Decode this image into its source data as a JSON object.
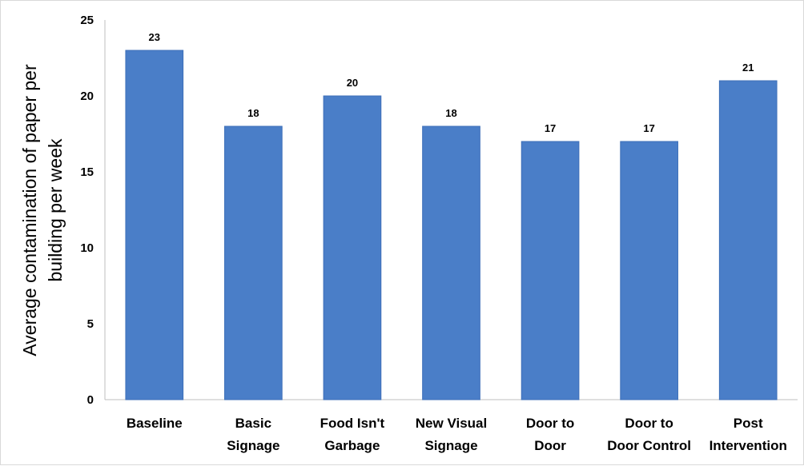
{
  "chart_data": {
    "type": "bar",
    "categories": [
      [
        "Baseline"
      ],
      [
        "Basic",
        "Signage"
      ],
      [
        "Food Isn't",
        "Garbage"
      ],
      [
        "New Visual",
        "Signage"
      ],
      [
        "Door to",
        "Door"
      ],
      [
        "Door to",
        "Door Control"
      ],
      [
        "Post",
        "Intervention"
      ]
    ],
    "values": [
      23,
      18,
      20,
      18,
      17,
      17,
      21
    ],
    "title": "",
    "xlabel": "",
    "ylabel": [
      "Average contamination of paper per",
      "building per week"
    ],
    "ylim": [
      0,
      25
    ],
    "yticks": [
      0,
      5,
      10,
      15,
      20,
      25
    ],
    "grid": false,
    "data_labels": true,
    "bar_color": "#4a7ec8",
    "bar_edge_color": "#3d6fb8"
  }
}
